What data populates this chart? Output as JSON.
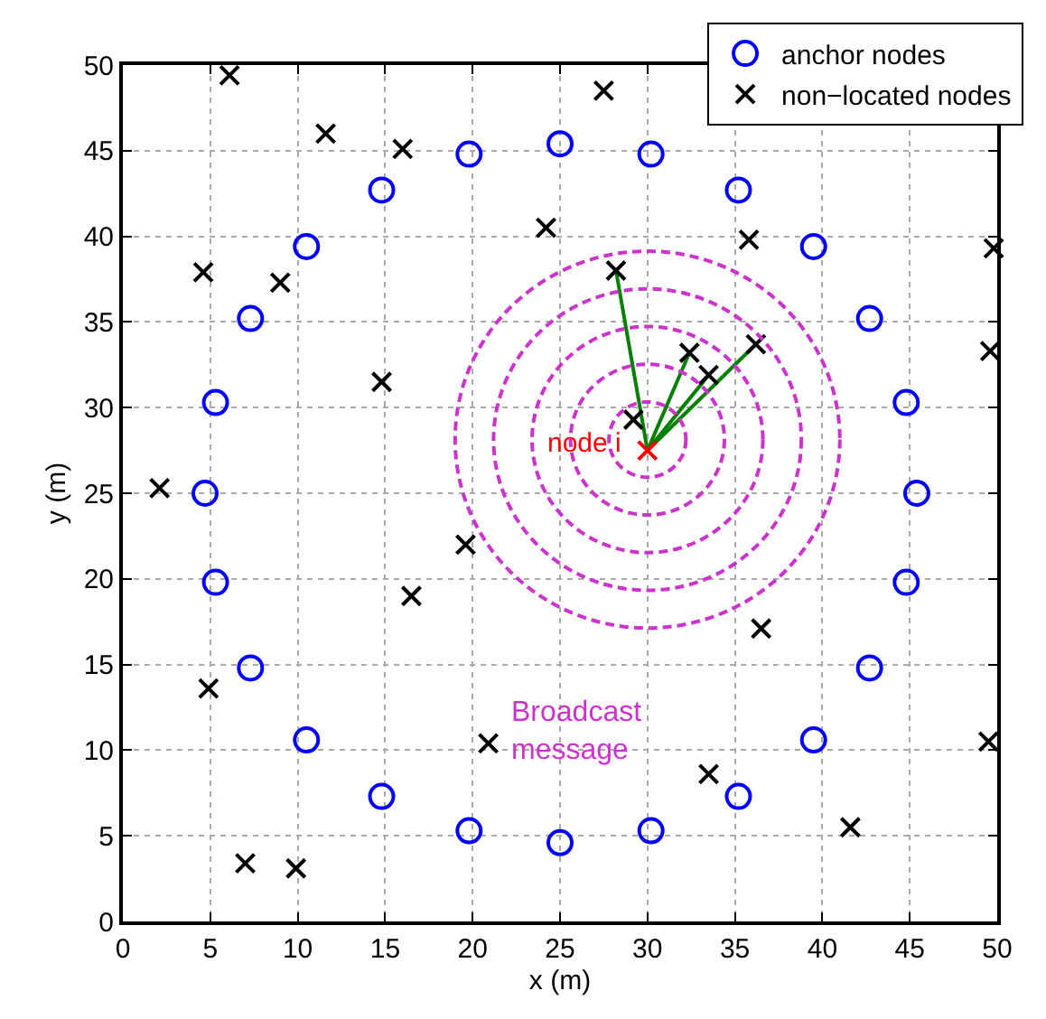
{
  "chart_data": {
    "type": "scatter",
    "xlabel": "x (m)",
    "ylabel": "y (m)",
    "xlim": [
      0,
      50
    ],
    "ylim": [
      0,
      50
    ],
    "xticks": [
      0,
      5,
      10,
      15,
      20,
      25,
      30,
      35,
      40,
      45,
      50
    ],
    "yticks": [
      0,
      5,
      10,
      15,
      20,
      25,
      30,
      35,
      40,
      45,
      50
    ],
    "grid": true,
    "legend": "top right",
    "annotations": [
      "Broadcast\nmessage",
      {
        "text": "node i",
        "x": 30,
        "y": 27.5
      }
    ],
    "series": [
      {
        "type": "line",
        "color": "#008000",
        "line_style": "solid",
        "x": [
          30,
          28.2
        ],
        "values": [
          27.5,
          38
        ]
      },
      {
        "type": "line",
        "color": "#008000",
        "line_style": "solid",
        "x": [
          30,
          32.4
        ],
        "values": [
          27.5,
          33.2
        ]
      },
      {
        "type": "line",
        "color": "#008000",
        "line_style": "solid",
        "x": [
          30,
          33.5
        ],
        "values": [
          27.5,
          31.9
        ]
      },
      {
        "type": "line",
        "color": "#008000",
        "line_style": "solid",
        "x": [
          30,
          36.2
        ],
        "values": [
          27.5,
          33.7
        ]
      },
      {
        "name": "anchor nodes",
        "color": "#0000ff",
        "marker": "circle",
        "x": [
          5.3,
          4.7,
          5.3,
          7.3,
          7.3,
          10.5,
          10.5,
          14.8,
          14.8,
          19.8,
          19.8,
          25,
          25,
          30.2,
          30.2,
          35.2,
          35.2,
          39.5,
          39.5,
          42.7,
          42.7,
          44.8,
          44.8,
          45.4
        ],
        "values": [
          30.3,
          25,
          19.8,
          35.2,
          14.8,
          39.4,
          10.6,
          42.7,
          7.3,
          44.8,
          5.3,
          45.4,
          4.6,
          44.8,
          5.3,
          42.7,
          7.3,
          39.4,
          10.6,
          35.2,
          14.8,
          30.3,
          19.8,
          25
        ]
      },
      {
        "name": "non−located nodes",
        "color": "#000000",
        "marker": "cross",
        "x": [
          6.1,
          11.6,
          16,
          27.5,
          24.2,
          4.6,
          9,
          14.8,
          28.2,
          35.8,
          49.8,
          49.6,
          32.4,
          33.5,
          36.2,
          29.2,
          2.1,
          19.6,
          16.5,
          36.5,
          4.9,
          20.9,
          49.5,
          33.5,
          41.6,
          7,
          9.9
        ],
        "values": [
          49.4,
          46,
          45.1,
          48.5,
          40.5,
          37.9,
          37.3,
          31.5,
          38,
          39.8,
          39.3,
          33.3,
          33.2,
          31.9,
          33.7,
          29.3,
          25.3,
          22,
          19,
          17.1,
          13.6,
          10.4,
          10.5,
          8.6,
          5.5,
          3.4,
          3.1
        ]
      },
      {
        "color": "#ff0000",
        "marker": "cross",
        "x": [
          30
        ],
        "values": [
          27.5
        ]
      }
    ]
  }
}
